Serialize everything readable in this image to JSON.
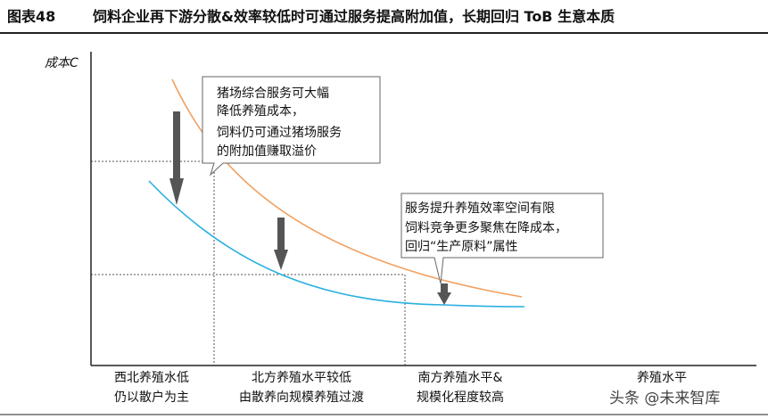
{
  "figure": {
    "label": "图表48",
    "title": "饲料企业再下游分散&效率较低时可通过服务提高附加值，长期回归 ToB 生意本质"
  },
  "diagram": {
    "y_axis_label": "成本C",
    "x_axis_label": "养殖水平",
    "regions": [
      {
        "line1": "西北养殖水低",
        "line2": "仍以散户为主"
      },
      {
        "line1": "北方养殖水平较低",
        "line2": "由散养向规模养殖过渡"
      },
      {
        "line1": "南方养殖水平&",
        "line2": "规模化程度较高"
      }
    ],
    "callouts": [
      {
        "lines": [
          "猪场综合服务可大幅",
          "降低养殖成本，",
          "饲料仍可通过猪场服务",
          "的附加值赚取溢价"
        ]
      },
      {
        "lines": [
          "服务提升养殖效率空间有限",
          "饲料竞争更多聚焦在降成本，",
          "回归“生产原料”属性"
        ]
      }
    ],
    "colors": {
      "upper_curve": "#f0a060",
      "lower_curve": "#2ab0e0",
      "arrow": "#555555",
      "axis": "#222222",
      "guide": "#555555"
    }
  },
  "watermark": "头条 @未来智库"
}
